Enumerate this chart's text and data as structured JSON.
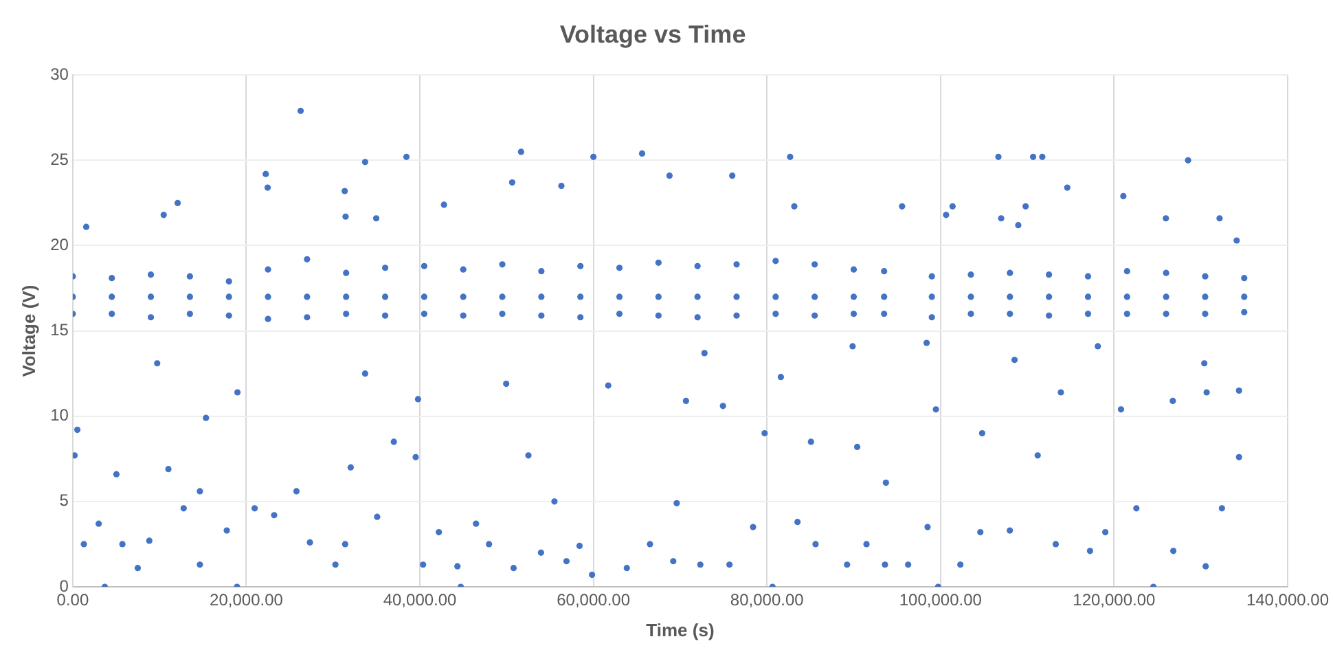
{
  "chart_data": {
    "type": "scatter",
    "title": "Voltage vs Time",
    "xlabel": "Time (s)",
    "ylabel": "Voltage (V)",
    "x": [
      0,
      0,
      0,
      4500,
      4500,
      4500,
      9000,
      9000,
      9000,
      13500,
      13500,
      13500,
      18000,
      18000,
      18000,
      22500,
      22500,
      22500,
      27000,
      27000,
      27000,
      31500,
      31500,
      31500,
      36000,
      36000,
      36000,
      40500,
      40500,
      40500,
      45000,
      45000,
      45000,
      49500,
      49500,
      49500,
      54000,
      54000,
      54000,
      58500,
      58500,
      58500,
      63000,
      63000,
      63000,
      67500,
      67500,
      67500,
      72000,
      72000,
      72000,
      76500,
      76500,
      76500,
      81000,
      81000,
      81000,
      85500,
      85500,
      85500,
      90000,
      90000,
      90000,
      93500,
      93500,
      93500,
      99000,
      99000,
      99000,
      103500,
      103500,
      103500,
      108000,
      108000,
      108000,
      112500,
      112500,
      112500,
      117000,
      117000,
      117000,
      121500,
      121500,
      121500,
      126000,
      126000,
      126000,
      130500,
      130500,
      130500,
      135000,
      135000,
      135000,
      26260,
      10480,
      12090,
      1550,
      22240,
      22460,
      33690,
      38450,
      31340,
      31440,
      34970,
      42780,
      51660,
      50640,
      56310,
      60000,
      65610,
      68770,
      210,
      530,
      1280,
      2990,
      5030,
      5720,
      7490,
      8820,
      9730,
      11020,
      12780,
      14650,
      14650,
      15350,
      17750,
      18980,
      20960,
      23210,
      25780,
      27330,
      30270,
      31390,
      32030,
      33690,
      35080,
      37000,
      39520,
      39790,
      40370,
      42190,
      44330,
      44710,
      46470,
      47970,
      49950,
      50800,
      52510,
      53960,
      55510,
      56900,
      58400,
      59840,
      61710,
      63850,
      66520,
      69200,
      3690,
      18930,
      82670,
      83150,
      76000,
      95570,
      101390,
      100640,
      106670,
      110670,
      111730,
      114610,
      109810,
      106990,
      108960,
      121070,
      125970,
      128530,
      132160,
      134130,
      69600,
      72320,
      75680,
      78400,
      80640,
      83520,
      85600,
      89230,
      91470,
      93600,
      93710,
      96270,
      98510,
      99730,
      102290,
      104590,
      107990,
      113280,
      117230,
      118990,
      122570,
      124530,
      126830,
      130560,
      132430,
      134400,
      134400,
      130670,
      126770,
      120800,
      113870,
      111200,
      104800,
      99470,
      90400,
      85070,
      79730,
      74930,
      70670,
      72800,
      81600,
      89870,
      98400,
      108530,
      118130,
      130400
    ],
    "values": [
      16.0,
      17.0,
      18.2,
      16.0,
      17.0,
      18.1,
      15.8,
      17.0,
      18.3,
      16.0,
      17.0,
      18.2,
      15.9,
      17.0,
      17.9,
      15.7,
      17.0,
      18.6,
      15.8,
      17.0,
      19.2,
      16.0,
      17.0,
      18.4,
      15.9,
      17.0,
      18.7,
      16.0,
      17.0,
      18.8,
      15.9,
      17.0,
      18.6,
      16.0,
      17.0,
      18.9,
      15.9,
      17.0,
      18.5,
      15.8,
      17.0,
      18.8,
      16.0,
      17.0,
      18.7,
      15.9,
      17.0,
      19.0,
      15.8,
      17.0,
      18.8,
      15.9,
      17.0,
      18.9,
      16.0,
      17.0,
      19.1,
      15.9,
      17.0,
      18.9,
      16.0,
      17.0,
      18.6,
      16.0,
      17.0,
      18.5,
      15.8,
      17.0,
      18.2,
      16.0,
      17.0,
      18.3,
      16.0,
      17.0,
      18.4,
      15.9,
      17.0,
      18.3,
      16.0,
      17.0,
      18.2,
      16.0,
      17.0,
      18.5,
      16.0,
      17.0,
      18.4,
      16.0,
      17.0,
      18.2,
      16.1,
      17.0,
      18.1,
      27.9,
      21.8,
      22.5,
      21.1,
      24.2,
      23.4,
      24.9,
      25.2,
      23.2,
      21.7,
      21.6,
      22.4,
      25.5,
      23.7,
      23.5,
      25.2,
      25.4,
      24.1,
      7.7,
      9.2,
      2.5,
      3.7,
      6.6,
      2.5,
      1.1,
      2.7,
      13.1,
      6.9,
      4.6,
      1.3,
      5.6,
      9.9,
      3.3,
      11.4,
      4.6,
      4.2,
      5.6,
      2.6,
      1.3,
      2.5,
      7.0,
      12.5,
      4.1,
      8.5,
      7.6,
      11.0,
      1.3,
      3.2,
      1.2,
      0,
      3.7,
      2.5,
      11.9,
      1.1,
      7.7,
      2.0,
      5.0,
      1.5,
      2.4,
      0.7,
      11.8,
      1.1,
      2.5,
      1.5,
      0,
      0,
      25.2,
      22.3,
      24.1,
      22.3,
      22.3,
      21.8,
      25.2,
      25.2,
      25.2,
      23.4,
      22.3,
      21.6,
      21.2,
      22.9,
      21.6,
      25.0,
      21.6,
      20.3,
      4.9,
      1.3,
      1.3,
      3.5,
      0,
      3.8,
      2.5,
      1.3,
      2.5,
      1.3,
      6.1,
      1.3,
      3.5,
      0,
      1.3,
      3.2,
      3.3,
      2.5,
      2.1,
      3.2,
      4.6,
      0,
      2.1,
      1.2,
      4.6,
      7.6,
      11.5,
      11.4,
      10.9,
      10.4,
      11.4,
      7.7,
      9.0,
      10.4,
      8.2,
      8.5,
      9.0,
      10.6,
      10.9,
      13.7,
      12.3,
      14.1,
      14.3,
      13.3,
      14.1,
      13.1
    ],
    "color": "#4472c4",
    "marker": "circle",
    "grid": true,
    "legend": false,
    "xlim": [
      0,
      140000
    ],
    "xticks": [
      {
        "value": 0,
        "label": "0.00"
      },
      {
        "value": 20000,
        "label": "20,000.00"
      },
      {
        "value": 40000,
        "label": "40,000.00"
      },
      {
        "value": 60000,
        "label": "60,000.00"
      },
      {
        "value": 80000,
        "label": "80,000.00"
      },
      {
        "value": 100000,
        "label": "100,000.00"
      },
      {
        "value": 120000,
        "label": "120,000.00"
      },
      {
        "value": 140000,
        "label": "140,000.00"
      }
    ],
    "ylim": [
      0,
      30
    ],
    "yticks": [
      0,
      5,
      10,
      15,
      20,
      25,
      30
    ]
  }
}
